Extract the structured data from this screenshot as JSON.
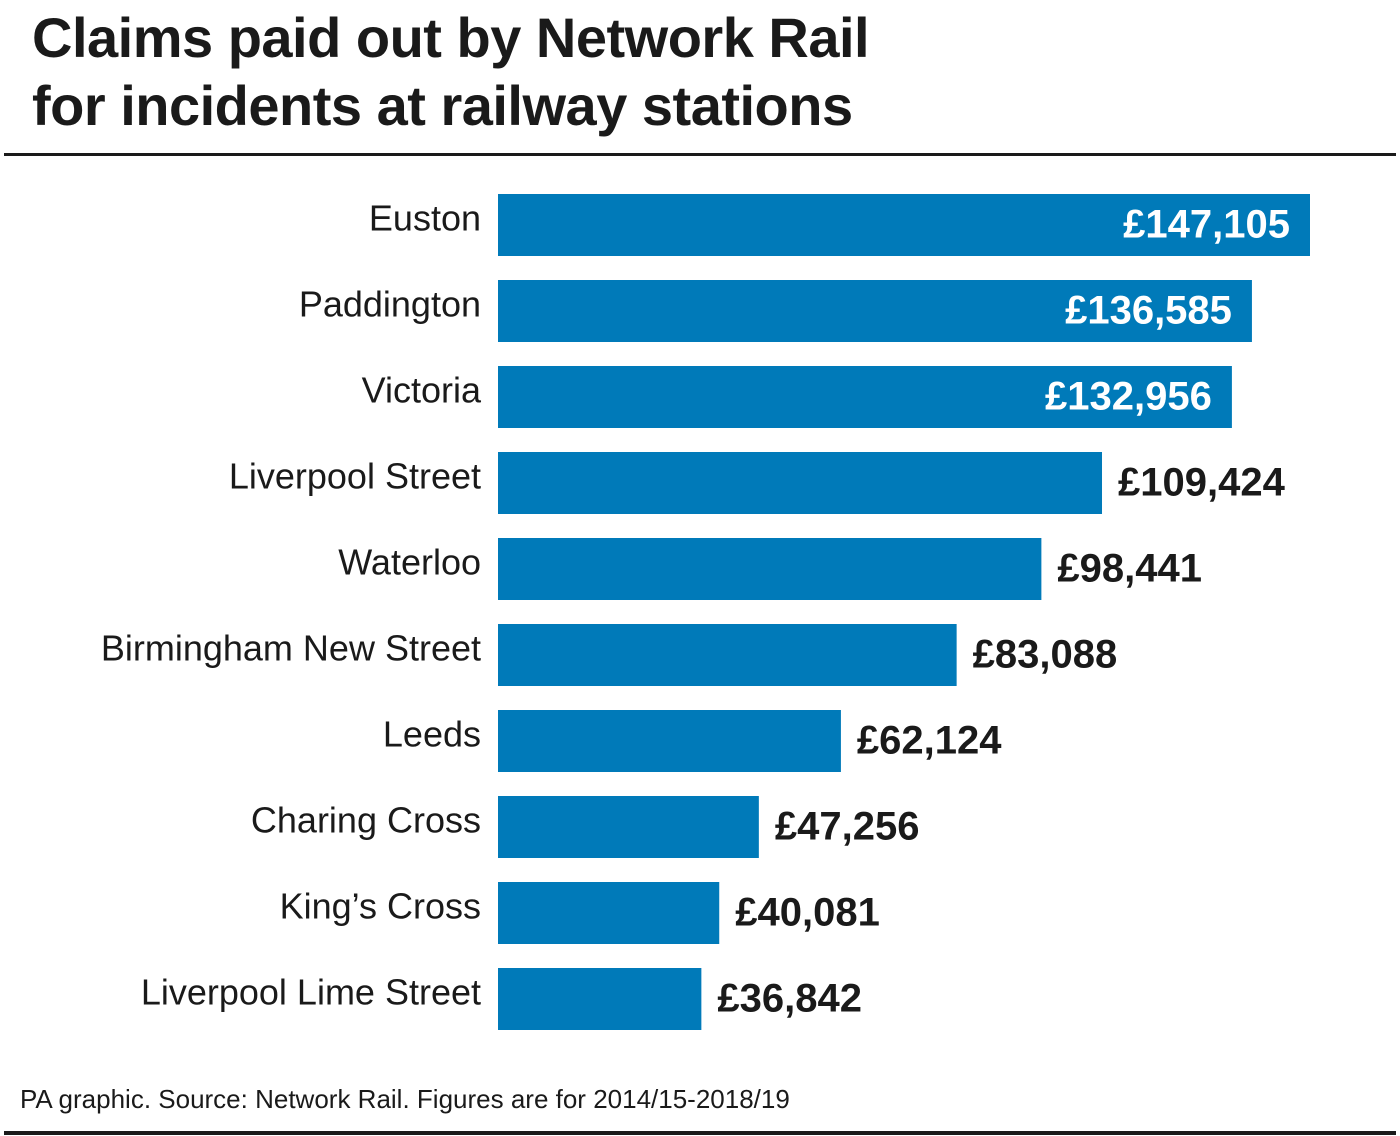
{
  "title": {
    "line1": "Claims paid out by Network Rail",
    "line2": "for incidents at railway stations"
  },
  "chart_data": {
    "type": "bar",
    "orientation": "horizontal",
    "title": "Claims paid out by Network Rail for incidents at railway stations",
    "categories": [
      "Euston",
      "Paddington",
      "Victoria",
      "Liverpool Street",
      "Waterloo",
      "Birmingham New Street",
      "Leeds",
      "Charing Cross",
      "King’s Cross",
      "Liverpool Lime Street"
    ],
    "values": [
      147105,
      136585,
      132956,
      109424,
      98441,
      83088,
      62124,
      47256,
      40081,
      36842
    ],
    "value_labels": [
      "£147,105",
      "£136,585",
      "£132,956",
      "£109,424",
      "£98,441",
      "£83,088",
      "£62,124",
      "£47,256",
      "£40,081",
      "£36,842"
    ],
    "xlim": [
      0,
      147105
    ],
    "grid": false,
    "legend": "none",
    "bar_color": "#007ab9",
    "label_inside_color": "#ffffff",
    "label_outside_color": "#1a1a1a"
  },
  "source": "PA graphic. Source: Network Rail. Figures are for 2014/15-2018/19"
}
